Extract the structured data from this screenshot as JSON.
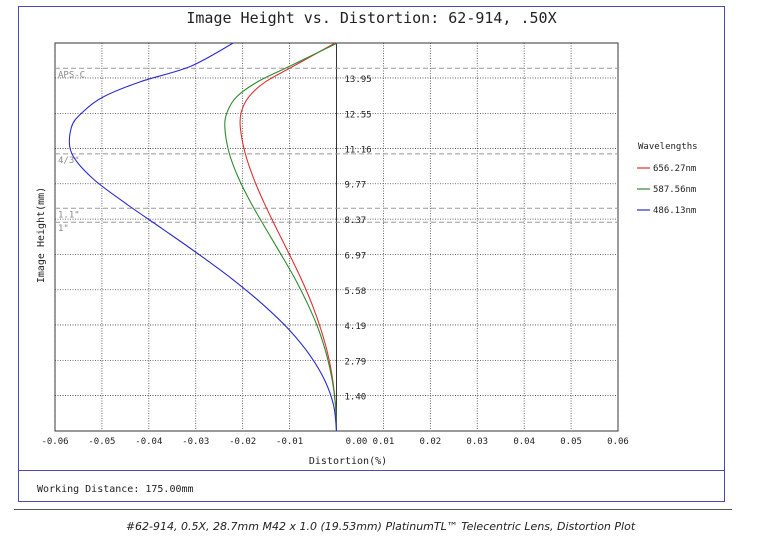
{
  "title": "Image Height vs. Distortion: 62-914, .50X",
  "footer": {
    "working_distance": "Working Distance: 175.00mm"
  },
  "caption": "#62-914, 0.5X, 28.7mm M42 x 1.0 (19.53mm) PlatinumTL™ Telecentric Lens, Distortion Plot",
  "chart_data": {
    "type": "line",
    "title": "Image Height vs. Distortion: 62-914, .50X",
    "xlabel": "Distortion(%)",
    "ylabel": "Image Height(mm)",
    "xlim": [
      -0.06,
      0.06
    ],
    "ylim": [
      0,
      15.33
    ],
    "x_ticks": [
      -0.06,
      -0.05,
      -0.04,
      -0.03,
      -0.02,
      -0.01,
      0.0,
      0.01,
      0.02,
      0.03,
      0.04,
      0.05,
      0.06
    ],
    "x_tick_labels": [
      "-0.06",
      "-0.05",
      "-0.04",
      "-0.03",
      "-0.02",
      "-0.01",
      "0.00",
      "0.01",
      "0.02",
      "0.03",
      "0.04",
      "0.05",
      "0.06"
    ],
    "y_ticks": [
      1.4,
      2.79,
      4.19,
      5.58,
      6.97,
      8.37,
      9.77,
      11.16,
      12.55,
      13.95
    ],
    "y_tick_labels": [
      "1.40",
      "2.79",
      "4.19",
      "5.58",
      "6.97",
      "8.37",
      "9.77",
      "11.16",
      "12.55",
      "13.95"
    ],
    "grid": true,
    "sensor_markers": [
      {
        "label": "APS-C",
        "y": 14.33
      },
      {
        "label": "4/3\"",
        "y": 10.95
      },
      {
        "label": "1.1\"",
        "y": 8.8
      },
      {
        "label": "1\"",
        "y": 8.25
      }
    ],
    "legend": {
      "title": "Wavelengths",
      "position": "right"
    },
    "series": [
      {
        "name": "656.27nm",
        "color": "#e03030",
        "x": [
          0.0,
          -0.0002,
          -0.0008,
          -0.0018,
          -0.0033,
          -0.0052,
          -0.0075,
          -0.0101,
          -0.0128,
          -0.0154,
          -0.0177,
          -0.0195,
          -0.0205,
          -0.0203,
          -0.0187,
          -0.0151,
          -0.0093,
          -0.0003
        ],
        "y": [
          0.0,
          1.0,
          2.0,
          3.0,
          4.0,
          5.0,
          6.0,
          7.0,
          8.0,
          9.0,
          10.0,
          11.0,
          12.0,
          12.6,
          13.2,
          13.8,
          14.4,
          15.33
        ]
      },
      {
        "name": "587.56nm",
        "color": "#2e8b2e",
        "x": [
          0.0,
          -0.0002,
          -0.0009,
          -0.0021,
          -0.0038,
          -0.0061,
          -0.0088,
          -0.0119,
          -0.0151,
          -0.0182,
          -0.0209,
          -0.0229,
          -0.0238,
          -0.0233,
          -0.0213,
          -0.0168,
          -0.0101,
          0.0002
        ],
        "y": [
          0.0,
          1.0,
          2.0,
          3.0,
          4.0,
          5.0,
          6.0,
          7.0,
          8.0,
          9.0,
          10.0,
          11.0,
          12.0,
          12.6,
          13.2,
          13.8,
          14.4,
          15.33
        ]
      },
      {
        "name": "486.13nm",
        "color": "#2b2bcc",
        "x": [
          0.0,
          -0.0006,
          -0.0025,
          -0.0057,
          -0.0101,
          -0.0157,
          -0.0222,
          -0.0295,
          -0.0372,
          -0.045,
          -0.0521,
          -0.0565,
          -0.0565,
          -0.0541,
          -0.0497,
          -0.0418,
          -0.0312,
          -0.022
        ],
        "y": [
          0.0,
          1.0,
          2.0,
          3.0,
          4.0,
          5.0,
          6.0,
          7.0,
          8.0,
          9.0,
          10.0,
          11.0,
          12.0,
          12.6,
          13.2,
          13.8,
          14.4,
          15.33
        ]
      }
    ]
  }
}
